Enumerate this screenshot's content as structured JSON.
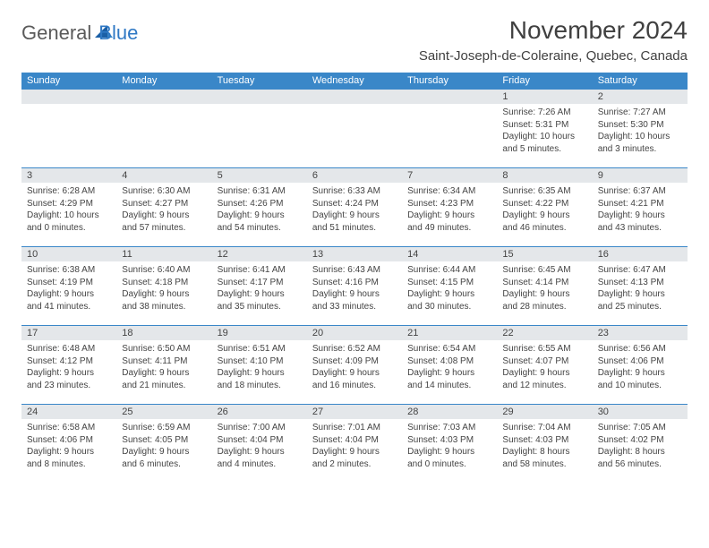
{
  "brand": {
    "word1": "General",
    "word2": "Blue",
    "word1_color": "#5a5a5a",
    "word2_color": "#2f78c4"
  },
  "title": "November 2024",
  "location": "Saint-Joseph-de-Coleraine, Quebec, Canada",
  "colors": {
    "header_bg": "#3a87c8",
    "header_fg": "#ffffff",
    "daynum_bg": "#e4e7ea",
    "text": "#444444",
    "border": "#3a87c8",
    "page_bg": "#ffffff"
  },
  "day_names": [
    "Sunday",
    "Monday",
    "Tuesday",
    "Wednesday",
    "Thursday",
    "Friday",
    "Saturday"
  ],
  "weeks": [
    [
      {
        "n": "",
        "sunrise": "",
        "sunset": "",
        "daylight": ""
      },
      {
        "n": "",
        "sunrise": "",
        "sunset": "",
        "daylight": ""
      },
      {
        "n": "",
        "sunrise": "",
        "sunset": "",
        "daylight": ""
      },
      {
        "n": "",
        "sunrise": "",
        "sunset": "",
        "daylight": ""
      },
      {
        "n": "",
        "sunrise": "",
        "sunset": "",
        "daylight": ""
      },
      {
        "n": "1",
        "sunrise": "Sunrise: 7:26 AM",
        "sunset": "Sunset: 5:31 PM",
        "daylight": "Daylight: 10 hours and 5 minutes."
      },
      {
        "n": "2",
        "sunrise": "Sunrise: 7:27 AM",
        "sunset": "Sunset: 5:30 PM",
        "daylight": "Daylight: 10 hours and 3 minutes."
      }
    ],
    [
      {
        "n": "3",
        "sunrise": "Sunrise: 6:28 AM",
        "sunset": "Sunset: 4:29 PM",
        "daylight": "Daylight: 10 hours and 0 minutes."
      },
      {
        "n": "4",
        "sunrise": "Sunrise: 6:30 AM",
        "sunset": "Sunset: 4:27 PM",
        "daylight": "Daylight: 9 hours and 57 minutes."
      },
      {
        "n": "5",
        "sunrise": "Sunrise: 6:31 AM",
        "sunset": "Sunset: 4:26 PM",
        "daylight": "Daylight: 9 hours and 54 minutes."
      },
      {
        "n": "6",
        "sunrise": "Sunrise: 6:33 AM",
        "sunset": "Sunset: 4:24 PM",
        "daylight": "Daylight: 9 hours and 51 minutes."
      },
      {
        "n": "7",
        "sunrise": "Sunrise: 6:34 AM",
        "sunset": "Sunset: 4:23 PM",
        "daylight": "Daylight: 9 hours and 49 minutes."
      },
      {
        "n": "8",
        "sunrise": "Sunrise: 6:35 AM",
        "sunset": "Sunset: 4:22 PM",
        "daylight": "Daylight: 9 hours and 46 minutes."
      },
      {
        "n": "9",
        "sunrise": "Sunrise: 6:37 AM",
        "sunset": "Sunset: 4:21 PM",
        "daylight": "Daylight: 9 hours and 43 minutes."
      }
    ],
    [
      {
        "n": "10",
        "sunrise": "Sunrise: 6:38 AM",
        "sunset": "Sunset: 4:19 PM",
        "daylight": "Daylight: 9 hours and 41 minutes."
      },
      {
        "n": "11",
        "sunrise": "Sunrise: 6:40 AM",
        "sunset": "Sunset: 4:18 PM",
        "daylight": "Daylight: 9 hours and 38 minutes."
      },
      {
        "n": "12",
        "sunrise": "Sunrise: 6:41 AM",
        "sunset": "Sunset: 4:17 PM",
        "daylight": "Daylight: 9 hours and 35 minutes."
      },
      {
        "n": "13",
        "sunrise": "Sunrise: 6:43 AM",
        "sunset": "Sunset: 4:16 PM",
        "daylight": "Daylight: 9 hours and 33 minutes."
      },
      {
        "n": "14",
        "sunrise": "Sunrise: 6:44 AM",
        "sunset": "Sunset: 4:15 PM",
        "daylight": "Daylight: 9 hours and 30 minutes."
      },
      {
        "n": "15",
        "sunrise": "Sunrise: 6:45 AM",
        "sunset": "Sunset: 4:14 PM",
        "daylight": "Daylight: 9 hours and 28 minutes."
      },
      {
        "n": "16",
        "sunrise": "Sunrise: 6:47 AM",
        "sunset": "Sunset: 4:13 PM",
        "daylight": "Daylight: 9 hours and 25 minutes."
      }
    ],
    [
      {
        "n": "17",
        "sunrise": "Sunrise: 6:48 AM",
        "sunset": "Sunset: 4:12 PM",
        "daylight": "Daylight: 9 hours and 23 minutes."
      },
      {
        "n": "18",
        "sunrise": "Sunrise: 6:50 AM",
        "sunset": "Sunset: 4:11 PM",
        "daylight": "Daylight: 9 hours and 21 minutes."
      },
      {
        "n": "19",
        "sunrise": "Sunrise: 6:51 AM",
        "sunset": "Sunset: 4:10 PM",
        "daylight": "Daylight: 9 hours and 18 minutes."
      },
      {
        "n": "20",
        "sunrise": "Sunrise: 6:52 AM",
        "sunset": "Sunset: 4:09 PM",
        "daylight": "Daylight: 9 hours and 16 minutes."
      },
      {
        "n": "21",
        "sunrise": "Sunrise: 6:54 AM",
        "sunset": "Sunset: 4:08 PM",
        "daylight": "Daylight: 9 hours and 14 minutes."
      },
      {
        "n": "22",
        "sunrise": "Sunrise: 6:55 AM",
        "sunset": "Sunset: 4:07 PM",
        "daylight": "Daylight: 9 hours and 12 minutes."
      },
      {
        "n": "23",
        "sunrise": "Sunrise: 6:56 AM",
        "sunset": "Sunset: 4:06 PM",
        "daylight": "Daylight: 9 hours and 10 minutes."
      }
    ],
    [
      {
        "n": "24",
        "sunrise": "Sunrise: 6:58 AM",
        "sunset": "Sunset: 4:06 PM",
        "daylight": "Daylight: 9 hours and 8 minutes."
      },
      {
        "n": "25",
        "sunrise": "Sunrise: 6:59 AM",
        "sunset": "Sunset: 4:05 PM",
        "daylight": "Daylight: 9 hours and 6 minutes."
      },
      {
        "n": "26",
        "sunrise": "Sunrise: 7:00 AM",
        "sunset": "Sunset: 4:04 PM",
        "daylight": "Daylight: 9 hours and 4 minutes."
      },
      {
        "n": "27",
        "sunrise": "Sunrise: 7:01 AM",
        "sunset": "Sunset: 4:04 PM",
        "daylight": "Daylight: 9 hours and 2 minutes."
      },
      {
        "n": "28",
        "sunrise": "Sunrise: 7:03 AM",
        "sunset": "Sunset: 4:03 PM",
        "daylight": "Daylight: 9 hours and 0 minutes."
      },
      {
        "n": "29",
        "sunrise": "Sunrise: 7:04 AM",
        "sunset": "Sunset: 4:03 PM",
        "daylight": "Daylight: 8 hours and 58 minutes."
      },
      {
        "n": "30",
        "sunrise": "Sunrise: 7:05 AM",
        "sunset": "Sunset: 4:02 PM",
        "daylight": "Daylight: 8 hours and 56 minutes."
      }
    ]
  ]
}
